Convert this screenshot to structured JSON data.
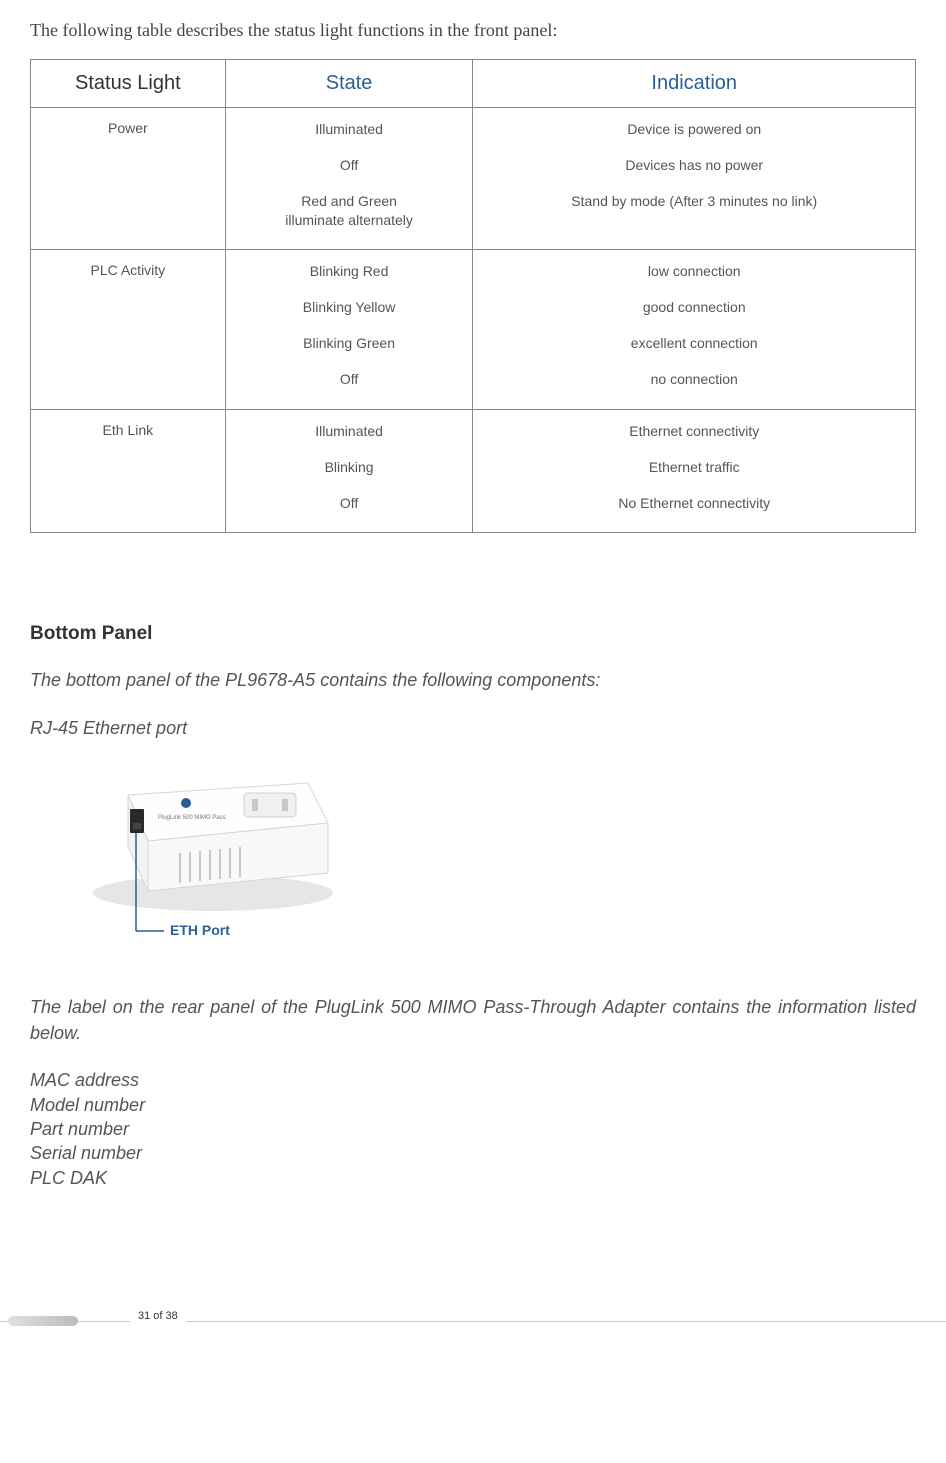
{
  "intro": "The following table describes the status light functions in the front panel:",
  "table": {
    "headers": [
      "Status Light",
      "State",
      "Indication"
    ],
    "rows": [
      {
        "name": "Power",
        "states": [
          {
            "state": "Illuminated",
            "indication": "Device is powered on"
          },
          {
            "state": "Off",
            "indication": "Devices has no power"
          },
          {
            "state": "Red and Green\nilluminate alternately",
            "indication": "Stand by mode (After 3 minutes no link)"
          }
        ]
      },
      {
        "name": "PLC Activity",
        "states": [
          {
            "state": "Blinking Red",
            "indication": "low connection"
          },
          {
            "state": "Blinking Yellow",
            "indication": "good connection"
          },
          {
            "state": "Blinking Green",
            "indication": "excellent connection"
          },
          {
            "state": "Off",
            "indication": "no connection"
          }
        ]
      },
      {
        "name": "Eth Link",
        "states": [
          {
            "state": "Illuminated",
            "indication": "Ethernet connectivity"
          },
          {
            "state": "Blinking",
            "indication": "Ethernet traffic"
          },
          {
            "state": "Off",
            "indication": "No Ethernet connectivity"
          }
        ]
      }
    ],
    "col_widths": [
      "22%",
      "28%",
      "50%"
    ],
    "header_color": "#2b5f94",
    "border_color": "#888888",
    "cell_text_color": "#555555",
    "header_fontsize": 20,
    "cell_fontsize": 14
  },
  "bottom_panel_heading": "Bottom Panel",
  "bottom_panel_intro": "The bottom panel of the PL9678-A5 contains the following components:",
  "bottom_panel_item": "RJ-45 Ethernet port",
  "device_fig": {
    "label": "ETH Port",
    "label_color": "#2b5f94"
  },
  "rear_label_intro": "The label on the rear panel of the PlugLink 500 MIMO Pass-Through Adapter contains the information listed below.",
  "rear_label_items": [
    "MAC address",
    "Model number",
    "Part number",
    "Serial number",
    "PLC DAK"
  ],
  "footer_page": "31 of 38"
}
